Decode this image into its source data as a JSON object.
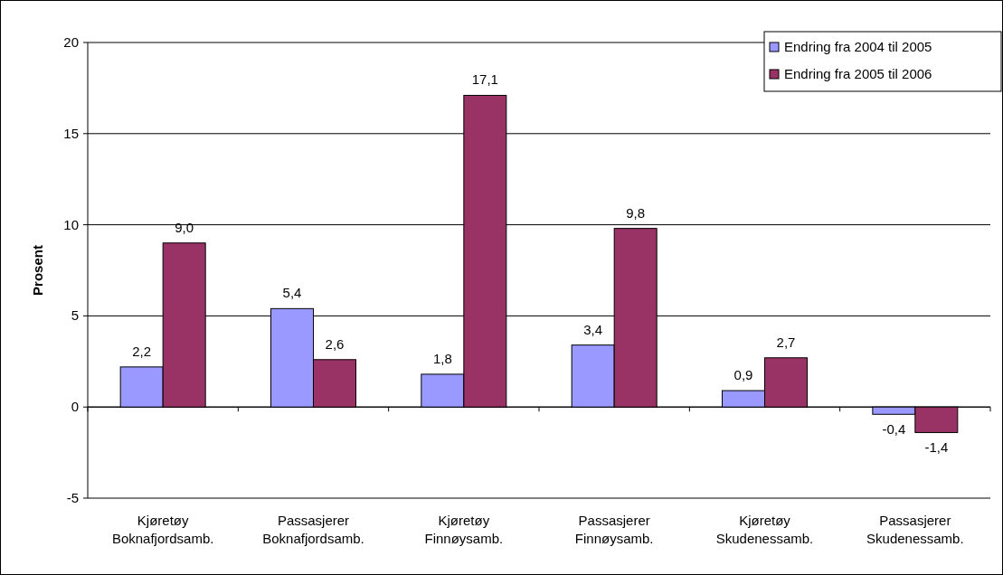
{
  "chart_data": {
    "type": "bar",
    "ylabel": "Prosent",
    "categories": [
      "Kjøretøy\nBoknafjordsamb.",
      "Passasjerer\nBoknafjordsamb.",
      "Kjøretøy\nFinnøysamb.",
      "Passasjerer\nFinnøysamb.",
      "Kjøretøy\nSkudenessamb.",
      "Passasjerer\nSkudenessamb."
    ],
    "series": [
      {
        "name": "Endring fra 2004 til 2005",
        "color": "#9999ff",
        "values": [
          2.2,
          5.4,
          1.8,
          3.4,
          0.9,
          -0.4
        ],
        "value_labels": [
          "2,2",
          "5,4",
          "1,8",
          "3,4",
          "0,9",
          "-0,4"
        ]
      },
      {
        "name": "Endring fra 2005 til 2006",
        "color": "#993366",
        "values": [
          9.0,
          2.6,
          17.1,
          9.8,
          2.7,
          -1.4
        ],
        "value_labels": [
          "9,0",
          "2,6",
          "17,1",
          "9,8",
          "2,7",
          "-1,4"
        ]
      }
    ],
    "ylim": [
      -5,
      20
    ],
    "yticks": [
      -5,
      0,
      5,
      10,
      15,
      20
    ],
    "grid": "y",
    "legend": "top right"
  }
}
